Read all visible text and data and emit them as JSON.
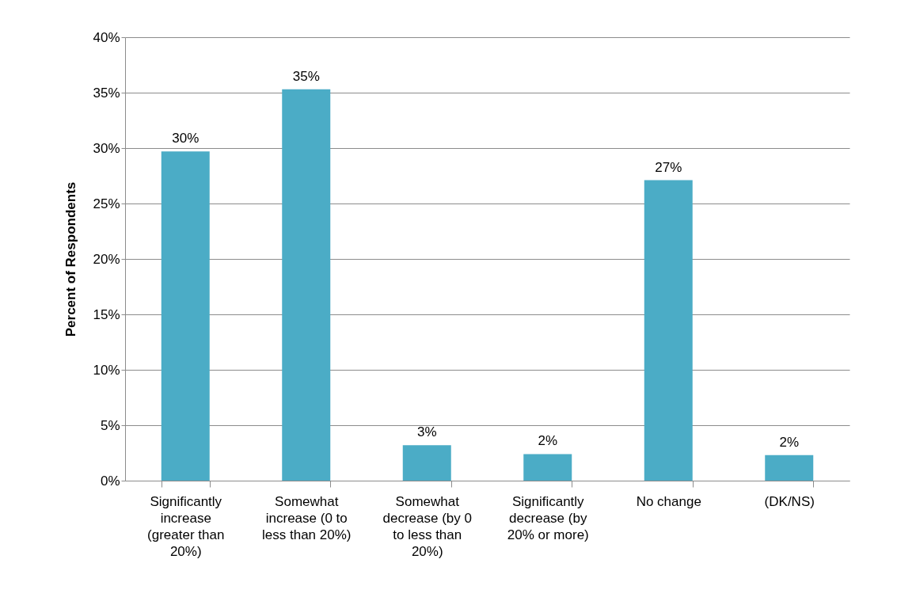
{
  "chart_data": {
    "type": "bar",
    "ylabel": "Percent of Respondents",
    "categories": [
      "Significantly increase (greater than 20%)",
      "Somewhat increase (0 to less than 20%)",
      "Somewhat decrease (by 0 to less than 20%)",
      "Significantly decrease (by 20% or more)",
      "No change",
      "(DK/NS)"
    ],
    "values": [
      29.7,
      35.3,
      3.2,
      2.4,
      27.1,
      2.3
    ],
    "value_labels": [
      "30%",
      "35%",
      "3%",
      "2%",
      "27%",
      "2%"
    ],
    "color": "#4bacc6",
    "ylim": [
      0,
      40
    ],
    "yticks": [
      {
        "value": 0,
        "label": "0%"
      },
      {
        "value": 5,
        "label": "5%"
      },
      {
        "value": 10,
        "label": "10%"
      },
      {
        "value": 15,
        "label": "15%"
      },
      {
        "value": 20,
        "label": "20%"
      },
      {
        "value": 25,
        "label": "25%"
      },
      {
        "value": 30,
        "label": "30%"
      },
      {
        "value": 35,
        "label": "35%"
      },
      {
        "value": 40,
        "label": "40%"
      }
    ],
    "grid": "y"
  }
}
